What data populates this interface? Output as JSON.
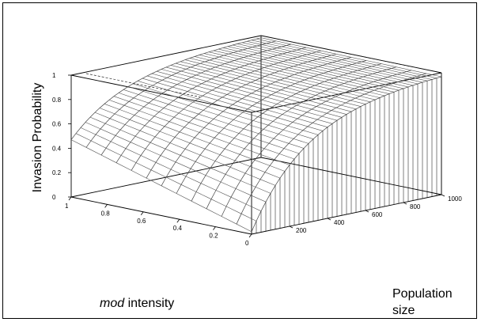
{
  "chart_data": {
    "type": "surface",
    "title": "",
    "zlabel": "Invasion Probability",
    "xlabel": {
      "emphasis": "mod",
      "rest": " intensity"
    },
    "ylabel": [
      "Population",
      "size"
    ],
    "x_axis": {
      "ticks": [
        "1",
        "0.8",
        "0.6",
        "0.4",
        "0.2",
        "0"
      ],
      "range": [
        1,
        0
      ]
    },
    "y_axis": {
      "ticks": [
        "200",
        "400",
        "600",
        "800",
        "1000"
      ],
      "range": [
        0,
        1000
      ]
    },
    "z_axis": {
      "ticks": [
        "0",
        "0.2",
        "0.4",
        "0.6",
        "0.8",
        "1"
      ],
      "range": [
        0,
        1
      ]
    },
    "mod_intensity": [
      1,
      0.9,
      0.8,
      0.7,
      0.6,
      0.5,
      0.4,
      0.3,
      0.2,
      0.1,
      0
    ],
    "population_size": [
      0,
      50,
      100,
      150,
      200,
      250,
      300,
      350,
      400,
      450,
      500,
      550,
      600,
      650,
      700,
      750,
      800,
      850,
      900,
      950,
      1000
    ],
    "invasion_probability": {
      "at_mod_intensity_1": [
        0.45,
        0.6,
        0.7,
        0.78,
        0.83,
        0.87,
        0.9,
        0.92,
        0.94,
        0.95,
        0.96,
        0.97,
        0.975,
        0.98,
        0.985,
        0.99,
        0.99,
        0.993,
        0.995,
        0.997,
        1.0
      ],
      "at_mod_intensity_0.8": [
        0.35,
        0.52,
        0.64,
        0.73,
        0.8,
        0.85,
        0.88,
        0.91,
        0.93,
        0.94,
        0.955,
        0.965,
        0.97,
        0.978,
        0.983,
        0.988,
        0.99,
        0.993,
        0.995,
        0.997,
        1.0
      ],
      "at_mod_intensity_0.4": [
        0.15,
        0.32,
        0.47,
        0.58,
        0.67,
        0.74,
        0.79,
        0.83,
        0.86,
        0.89,
        0.91,
        0.93,
        0.945,
        0.955,
        0.965,
        0.973,
        0.98,
        0.985,
        0.99,
        0.995,
        1.0
      ],
      "at_mod_intensity_0": [
        0.0,
        0.15,
        0.3,
        0.42,
        0.52,
        0.6,
        0.67,
        0.72,
        0.77,
        0.8,
        0.84,
        0.87,
        0.89,
        0.91,
        0.93,
        0.945,
        0.96,
        0.97,
        0.98,
        0.99,
        1.0
      ]
    },
    "grid": true,
    "box": true
  }
}
